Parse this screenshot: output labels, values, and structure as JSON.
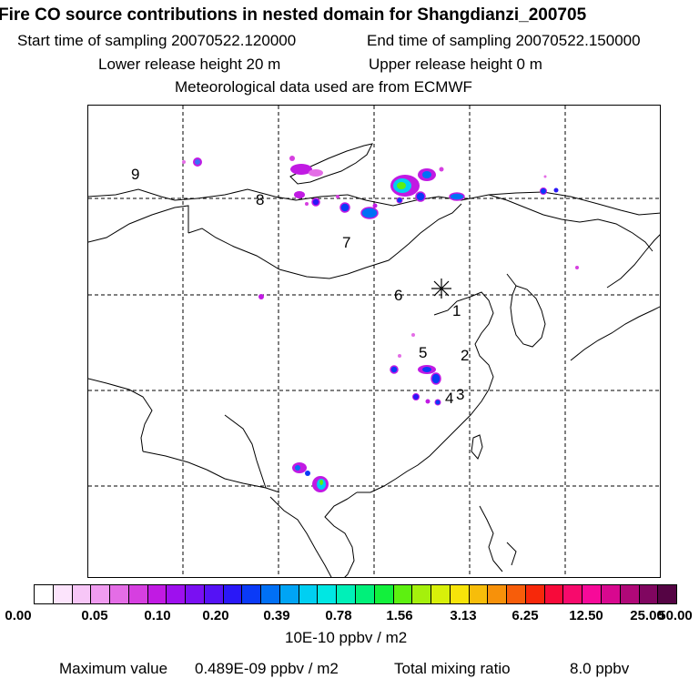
{
  "header": {
    "title": "Fire CO source contributions in nested domain for Shangdianzi_200705",
    "start_label": "Start time of sampling 20070522.120000",
    "end_label": "End time of sampling 20070522.150000",
    "lower_label": "Lower release height   20 m",
    "upper_label": "Upper release height    0 m",
    "met_label": "Meteorological data used are from ECMWF"
  },
  "map": {
    "receptor_marker": "star-icon",
    "site_labels": [
      "1",
      "2",
      "3",
      "4",
      "5",
      "6",
      "7",
      "8",
      "9"
    ]
  },
  "colorbar": {
    "colors": [
      "#ffffff",
      "#fce4fc",
      "#f7c6f7",
      "#f09cf0",
      "#e46de6",
      "#d63fe0",
      "#c11ae3",
      "#9e10ee",
      "#7a10f2",
      "#5512f5",
      "#2a18f7",
      "#0a3af7",
      "#0070f5",
      "#00a4f5",
      "#00cff2",
      "#00e7e3",
      "#00f0b8",
      "#00f07a",
      "#12f03c",
      "#5df010",
      "#a5f00c",
      "#d8f00a",
      "#f7e40a",
      "#f7bd0a",
      "#f7910a",
      "#f75d0a",
      "#f7280a",
      "#f70a3a",
      "#f70a6c",
      "#f70a99",
      "#d8088f",
      "#b00878",
      "#800660",
      "#550444"
    ],
    "tick_labels": [
      "0.00",
      "0.05",
      "0.10",
      "0.20",
      "0.39",
      "0.78",
      "1.56",
      "3.13",
      "6.25",
      "12.50",
      "25.00",
      "50.00"
    ],
    "units": "10E-10 ppbv / m2"
  },
  "footer": {
    "max_label": "Maximum value",
    "max_value": "0.489E-09 ppbv / m2",
    "total_label": "Total mixing ratio",
    "total_value": "8.0 ppbv"
  }
}
